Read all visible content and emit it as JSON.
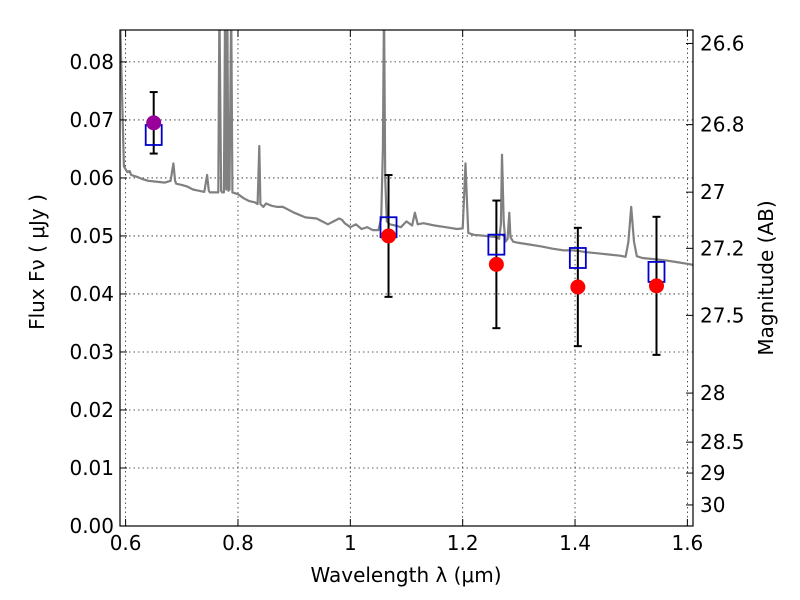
{
  "chart_data": {
    "type": "scatter",
    "xlabel": "Wavelength  λ (μm)",
    "ylabel": "Flux  Fν  ( μJy )",
    "y2label": "Magnitude (AB)",
    "xlim": [
      0.59,
      1.61
    ],
    "ylim": [
      0.0,
      0.0855
    ],
    "x_ticks": [
      0.6,
      0.8,
      1.0,
      1.2,
      1.4,
      1.6
    ],
    "x_tick_labels": [
      "0.6",
      "0.8",
      "1",
      "1.2",
      "1.4",
      "1.6"
    ],
    "y_ticks": [
      0.0,
      0.01,
      0.02,
      0.03,
      0.04,
      0.05,
      0.06,
      0.07,
      0.08
    ],
    "y_tick_labels": [
      "0.00",
      "0.01",
      "0.02",
      "0.03",
      "0.04",
      "0.05",
      "0.06",
      "0.07",
      "0.08"
    ],
    "y2_ticks": [
      26.6,
      26.8,
      27,
      27.2,
      27.5,
      28,
      28.5,
      29,
      30
    ],
    "y2_tick_labels": [
      "26.6",
      "26.8",
      "27",
      "27.2",
      "27.5",
      "28",
      "28.5",
      "29",
      "30"
    ],
    "grid": true,
    "colors": {
      "model": "#808080",
      "observed": "#ff0000",
      "observed_first": "#990099",
      "model_box": "#0000cc",
      "errorbar": "#000000"
    },
    "series": [
      {
        "kind": "line",
        "x": [
          0.59,
          0.597,
          0.6,
          0.603,
          0.607,
          0.61,
          0.62,
          0.63,
          0.64,
          0.65,
          0.66,
          0.67,
          0.68,
          0.685,
          0.688,
          0.69,
          0.7,
          0.71,
          0.72,
          0.73,
          0.74,
          0.745,
          0.748,
          0.75,
          0.76,
          0.765,
          0.767,
          0.77,
          0.772,
          0.775,
          0.777,
          0.779,
          0.781,
          0.783,
          0.785,
          0.788,
          0.79,
          0.8,
          0.81,
          0.82,
          0.83,
          0.835,
          0.838,
          0.84,
          0.845,
          0.85,
          0.86,
          0.87,
          0.88,
          0.9,
          0.92,
          0.94,
          0.96,
          0.97,
          0.98,
          0.985,
          0.99,
          1.0,
          1.01,
          1.02,
          1.03,
          1.04,
          1.05,
          1.055,
          1.058,
          1.06,
          1.062,
          1.065,
          1.07,
          1.08,
          1.09,
          1.1,
          1.11,
          1.115,
          1.12,
          1.13,
          1.15,
          1.17,
          1.19,
          1.2,
          1.203,
          1.205,
          1.208,
          1.21,
          1.22,
          1.24,
          1.26,
          1.265,
          1.268,
          1.27,
          1.273,
          1.276,
          1.28,
          1.283,
          1.285,
          1.29,
          1.3,
          1.32,
          1.34,
          1.36,
          1.38,
          1.4,
          1.42,
          1.44,
          1.46,
          1.48,
          1.49,
          1.495,
          1.5,
          1.505,
          1.51,
          1.52,
          1.54,
          1.56,
          1.58,
          1.6,
          1.61
        ],
        "y": [
          0.088,
          0.062,
          0.0615,
          0.061,
          0.0612,
          0.0605,
          0.0602,
          0.0598,
          0.0595,
          0.0594,
          0.0593,
          0.0592,
          0.0595,
          0.0625,
          0.0595,
          0.059,
          0.0588,
          0.0585,
          0.058,
          0.0578,
          0.0576,
          0.0605,
          0.0578,
          0.0575,
          0.0575,
          0.0575,
          0.09,
          0.0578,
          0.0575,
          0.0575,
          0.09,
          0.058,
          0.09,
          0.0578,
          0.058,
          0.09,
          0.0575,
          0.0572,
          0.0565,
          0.056,
          0.0558,
          0.0555,
          0.0655,
          0.0555,
          0.055,
          0.0556,
          0.0552,
          0.055,
          0.055,
          0.054,
          0.0532,
          0.053,
          0.052,
          0.0525,
          0.053,
          0.0528,
          0.0522,
          0.0515,
          0.052,
          0.0512,
          0.0515,
          0.051,
          0.051,
          0.053,
          0.065,
          0.09,
          0.06,
          0.0525,
          0.052,
          0.0518,
          0.0515,
          0.0525,
          0.0518,
          0.054,
          0.052,
          0.0522,
          0.0518,
          0.0515,
          0.0512,
          0.0513,
          0.058,
          0.0625,
          0.055,
          0.0505,
          0.0502,
          0.05,
          0.0498,
          0.0495,
          0.052,
          0.064,
          0.0525,
          0.049,
          0.0495,
          0.054,
          0.0498,
          0.049,
          0.0488,
          0.0485,
          0.0482,
          0.0478,
          0.0475,
          0.0475,
          0.0472,
          0.047,
          0.0468,
          0.0466,
          0.0464,
          0.049,
          0.055,
          0.049,
          0.0465,
          0.0462,
          0.046,
          0.0458,
          0.0455,
          0.0452,
          0.045
        ]
      },
      {
        "kind": "errorbar",
        "x": [
          0.65,
          1.068,
          1.26,
          1.405,
          1.545
        ],
        "y": [
          0.0695,
          0.05,
          0.0451,
          0.0412,
          0.0414
        ],
        "yerr": [
          0.0053,
          0.0105,
          0.011,
          0.0102,
          0.0119
        ]
      },
      {
        "kind": "box",
        "x": [
          0.65,
          1.068,
          1.26,
          1.405,
          1.545
        ],
        "y": [
          0.0674,
          0.0515,
          0.0485,
          0.0462,
          0.0438
        ]
      }
    ]
  }
}
